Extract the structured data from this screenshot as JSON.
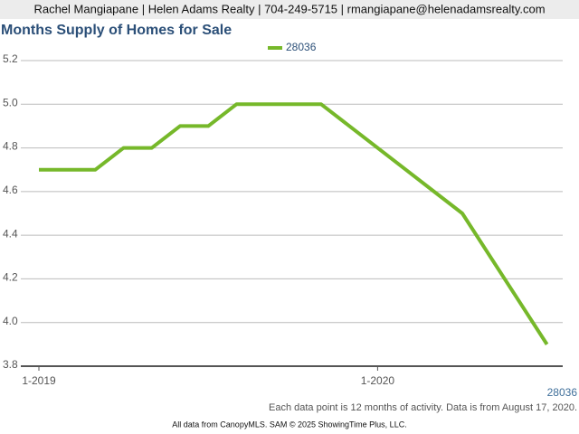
{
  "header": "Rachel Mangiapane | Helen Adams Realty | 704-249-5715 | rmangiapane@helenadamsrealty.com",
  "chart_data": {
    "type": "line",
    "title": "Months Supply of Homes for Sale",
    "categories": [
      "1-2019",
      null,
      null,
      null,
      null,
      null,
      null,
      null,
      null,
      null,
      null,
      null,
      "1-2020",
      null,
      null,
      null,
      null,
      null,
      null
    ],
    "series": [
      {
        "name": "28036",
        "color": "#76b82a",
        "values": [
          4.7,
          4.7,
          4.7,
          4.8,
          4.8,
          4.9,
          4.9,
          5.0,
          5.0,
          5.0,
          5.0,
          4.9,
          4.8,
          4.7,
          4.6,
          4.5,
          4.3,
          4.1,
          3.9
        ]
      }
    ],
    "ylim": [
      3.8,
      5.2
    ],
    "yticks": [
      3.8,
      {
        "value": 4.0,
        "label": "4.0"
      },
      4.2,
      4.4,
      4.6,
      4.8,
      {
        "value": 5.0,
        "label": "5.0"
      },
      5.2
    ],
    "grid": true,
    "x_axis_label": "28036",
    "note": "Each data point is 12 months of activity. Data is from August 17, 2020."
  },
  "footer": "All data from CanopyMLS. SAM © 2025 ShowingTime Plus, LLC."
}
